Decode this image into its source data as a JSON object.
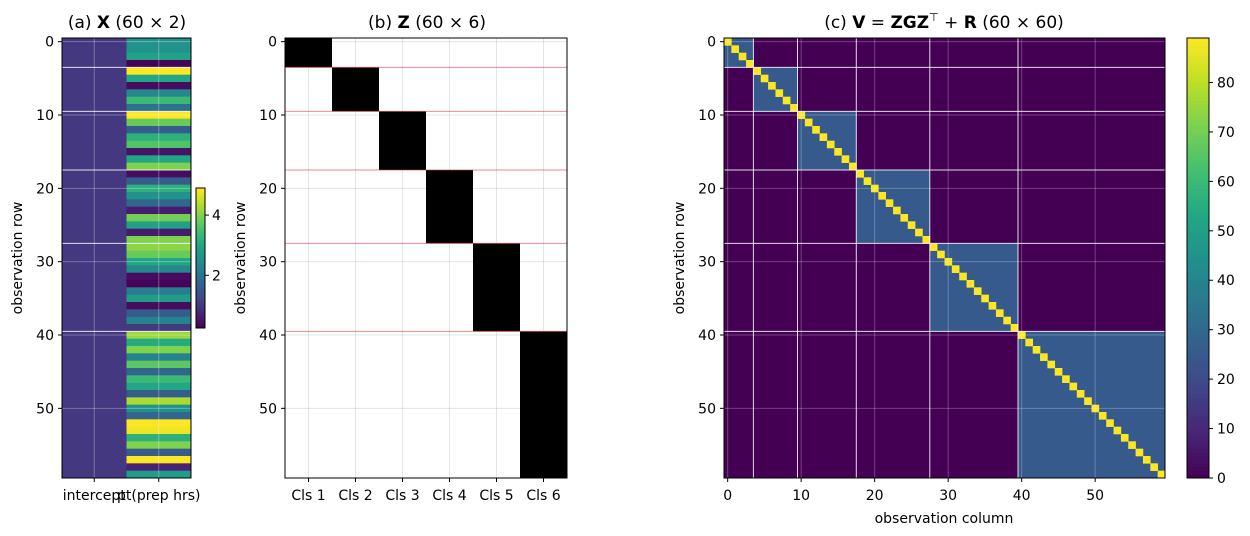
{
  "colormap_viridis": [
    "#440154",
    "#482475",
    "#414487",
    "#355f8d",
    "#2a788e",
    "#21918c",
    "#22a884",
    "#44bf70",
    "#7ad151",
    "#bddf26",
    "#fde725"
  ],
  "chart_data": [
    {
      "type": "heatmap",
      "panel": "a",
      "title_parts": [
        "(a) ",
        "X",
        "  (60 × 2)"
      ],
      "ylabel": "observation row",
      "x_categories": [
        "intercept",
        "pt(prep hrs)"
      ],
      "n_rows": 60,
      "yticks": [
        0,
        10,
        20,
        30,
        40,
        50
      ],
      "colorbar": {
        "range": [
          0.25,
          4.9
        ],
        "ticks": [
          2,
          4
        ]
      },
      "group_boundaries": [
        3.5,
        9.5,
        17.5,
        27.5,
        39.5
      ],
      "columns": [
        {
          "name": "intercept",
          "values": [
            1,
            1,
            1,
            1,
            1,
            1,
            1,
            1,
            1,
            1,
            1,
            1,
            1,
            1,
            1,
            1,
            1,
            1,
            1,
            1,
            1,
            1,
            1,
            1,
            1,
            1,
            1,
            1,
            1,
            1,
            1,
            1,
            1,
            1,
            1,
            1,
            1,
            1,
            1,
            1,
            1,
            1,
            1,
            1,
            1,
            1,
            1,
            1,
            1,
            1,
            1,
            1,
            1,
            1,
            1,
            1,
            1,
            1,
            1,
            1
          ]
        },
        {
          "name": "pt(prep hrs)",
          "values": [
            2.6,
            2.6,
            2.9,
            0.3,
            4.9,
            3.0,
            0.4,
            2.4,
            3.4,
            2.0,
            4.9,
            3.8,
            1.6,
            3.2,
            3.6,
            0.5,
            3.0,
            4.0,
            0.4,
            1.6,
            3.2,
            2.6,
            1.8,
            0.6,
            3.9,
            2.9,
            0.6,
            4.0,
            4.1,
            3.8,
            3.0,
            2.4,
            0.4,
            0.3,
            2.2,
            2.8,
            0.4,
            1.6,
            2.3,
            1.0,
            4.2,
            3.1,
            4.0,
            2.3,
            3.7,
            1.8,
            3.4,
            3.0,
            1.6,
            4.3,
            2.6,
            1.8,
            4.9,
            4.8,
            3.2,
            4.0,
            1.6,
            4.9,
            0.7,
            2.8
          ]
        }
      ]
    },
    {
      "type": "heatmap",
      "panel": "b",
      "title_parts": [
        "(b) ",
        "Z",
        "  (60 × 6)"
      ],
      "ylabel": "observation row",
      "x_categories": [
        "Cls 1",
        "Cls 2",
        "Cls 3",
        "Cls 4",
        "Cls 5",
        "Cls 6"
      ],
      "n_rows": 60,
      "yticks": [
        0,
        10,
        20,
        30,
        40,
        50
      ],
      "cluster_sizes": [
        4,
        6,
        8,
        10,
        12,
        20
      ],
      "group_boundaries": [
        3.5,
        9.5,
        17.5,
        27.5,
        39.5
      ]
    },
    {
      "type": "heatmap",
      "panel": "c",
      "title_parts": [
        "(c) ",
        "V",
        " = ",
        "ZGZ",
        "⊤",
        " + ",
        "R",
        "  (60 × 60)"
      ],
      "xlabel": "observation column",
      "ylabel": "observation row",
      "n": 60,
      "xticks": [
        0,
        10,
        20,
        30,
        40,
        50
      ],
      "yticks": [
        0,
        10,
        20,
        30,
        40,
        50
      ],
      "cluster_sizes": [
        4,
        6,
        8,
        10,
        12,
        20
      ],
      "values": {
        "diagonal": 89,
        "within_cluster": 25,
        "between_cluster": 0
      },
      "colorbar": {
        "range": [
          0,
          89
        ],
        "ticks": [
          0,
          10,
          20,
          30,
          40,
          50,
          60,
          70,
          80
        ]
      }
    }
  ]
}
